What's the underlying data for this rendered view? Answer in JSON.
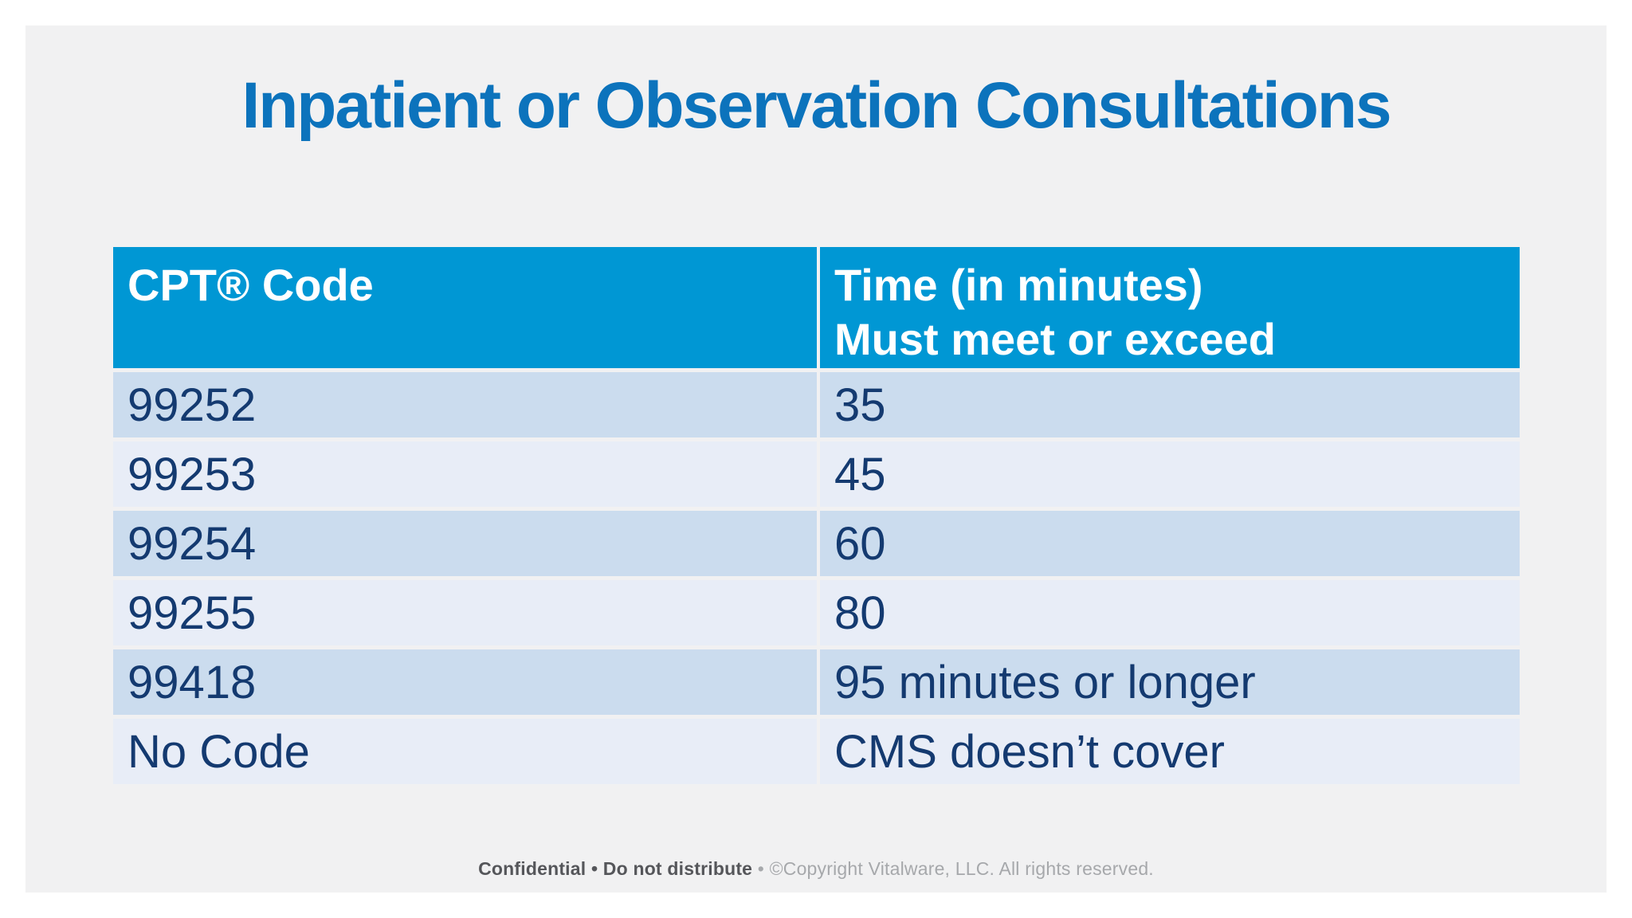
{
  "title": "Inpatient or Observation Consultations",
  "colors": {
    "title_blue": "#0c73bc",
    "header_blue": "#0097d4",
    "row_dark": "#cbdcee",
    "row_light": "#e8edf7",
    "cell_text": "#143a70",
    "slide_background": "#f1f1f2",
    "page_background": "#ffffff"
  },
  "table": {
    "header": {
      "col1": "CPT® Code",
      "col2_line1": "Time (in minutes)",
      "col2_line2": "Must meet or exceed"
    },
    "rows": [
      {
        "code": "99252",
        "time": "35"
      },
      {
        "code": "99253",
        "time": "45"
      },
      {
        "code": "99254",
        "time": "60"
      },
      {
        "code": "99255",
        "time": "80"
      },
      {
        "code": "99418",
        "time": "95 minutes or longer"
      },
      {
        "code": "No Code",
        "time": "CMS doesn’t cover"
      }
    ]
  },
  "footer": {
    "bold": "Confidential • Do not distribute",
    "light": "• ©Copyright Vitalware, LLC. All rights reserved."
  }
}
